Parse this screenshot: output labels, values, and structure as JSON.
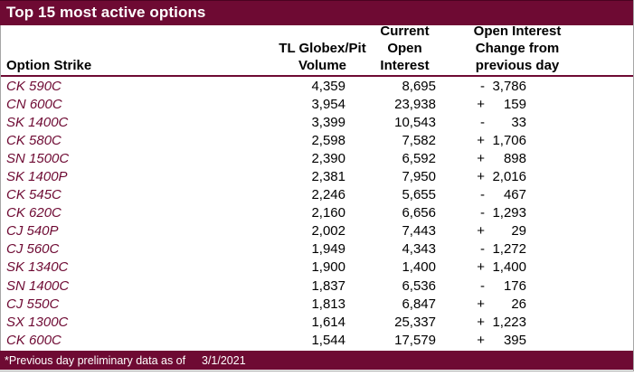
{
  "title": "Top 15 most active options",
  "accent_color": "#6E0A33",
  "columns": {
    "strike": "Option Strike",
    "volume": [
      "TL Globex/Pit",
      "Volume"
    ],
    "open_interest": [
      "Current",
      "Open",
      "Interest"
    ],
    "change": [
      "Open Interest",
      "Change from",
      "previous day"
    ]
  },
  "rows": [
    {
      "strike": "CK 590C",
      "volume": "4,359",
      "open_interest": "8,695",
      "change_sign": "-",
      "change_value": "3,786"
    },
    {
      "strike": "CN 600C",
      "volume": "3,954",
      "open_interest": "23,938",
      "change_sign": "+",
      "change_value": "159"
    },
    {
      "strike": "SK 1400C",
      "volume": "3,399",
      "open_interest": "10,543",
      "change_sign": "-",
      "change_value": "33"
    },
    {
      "strike": "CK 580C",
      "volume": "2,598",
      "open_interest": "7,582",
      "change_sign": "+",
      "change_value": "1,706"
    },
    {
      "strike": "SN 1500C",
      "volume": "2,390",
      "open_interest": "6,592",
      "change_sign": "+",
      "change_value": "898"
    },
    {
      "strike": "SK 1400P",
      "volume": "2,381",
      "open_interest": "7,950",
      "change_sign": "+",
      "change_value": "2,016"
    },
    {
      "strike": "CK 545C",
      "volume": "2,246",
      "open_interest": "5,655",
      "change_sign": "-",
      "change_value": "467"
    },
    {
      "strike": "CK 620C",
      "volume": "2,160",
      "open_interest": "6,656",
      "change_sign": "-",
      "change_value": "1,293"
    },
    {
      "strike": "CJ 540P",
      "volume": "2,002",
      "open_interest": "7,443",
      "change_sign": "+",
      "change_value": "29"
    },
    {
      "strike": "CJ 560C",
      "volume": "1,949",
      "open_interest": "4,343",
      "change_sign": "-",
      "change_value": "1,272"
    },
    {
      "strike": "SK 1340C",
      "volume": "1,900",
      "open_interest": "1,400",
      "change_sign": "+",
      "change_value": "1,400"
    },
    {
      "strike": "SN 1400C",
      "volume": "1,837",
      "open_interest": "6,536",
      "change_sign": "-",
      "change_value": "176"
    },
    {
      "strike": "CJ 550C",
      "volume": "1,813",
      "open_interest": "6,847",
      "change_sign": "+",
      "change_value": "26"
    },
    {
      "strike": "SX 1300C",
      "volume": "1,614",
      "open_interest": "25,337",
      "change_sign": "+",
      "change_value": "1,223"
    },
    {
      "strike": "CK 600C",
      "volume": "1,544",
      "open_interest": "17,579",
      "change_sign": "+",
      "change_value": "395"
    }
  ],
  "footer": {
    "note": "*Previous day preliminary data as of",
    "date": "3/1/2021"
  }
}
